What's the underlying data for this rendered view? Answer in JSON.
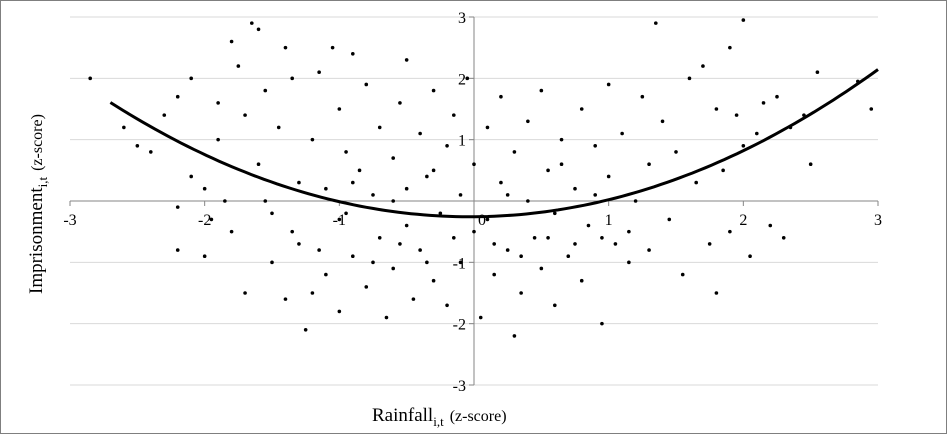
{
  "chart_data": {
    "type": "scatter",
    "title": "",
    "xlabel": "Rainfall",
    "xlabel_sub": "i,t",
    "xlabel_unit": "(z-score)",
    "ylabel": "Imprisonment",
    "ylabel_sub": "i,t",
    "ylabel_unit": "(z-score)",
    "xlim": [
      -3,
      3
    ],
    "ylim": [
      -3,
      3
    ],
    "x_ticks": [
      -3,
      -2,
      -1,
      0,
      1,
      2,
      3
    ],
    "y_ticks": [
      -3,
      -2,
      -1,
      1,
      2,
      3
    ],
    "x_tick_labels": [
      "-3",
      "-2",
      "-1",
      "0",
      "1",
      "2",
      "3"
    ],
    "y_tick_labels": [
      "-3",
      "-2",
      "-1",
      "1",
      "2",
      "3"
    ],
    "grid": "horizontal",
    "legend": "none",
    "colors": {
      "points": "#000000",
      "curve": "#000000",
      "grid": "#d9d9d9",
      "axis": "#868686"
    },
    "trendline": {
      "type": "quadratic",
      "x_range": [
        -2.7,
        3.0
      ],
      "points": [
        [
          -2.7,
          1.55
        ],
        [
          -2.0,
          0.8
        ],
        [
          -1.0,
          0.05
        ],
        [
          0.0,
          -0.25
        ],
        [
          1.0,
          -0.05
        ],
        [
          2.0,
          0.8
        ],
        [
          3.0,
          2.18
        ]
      ]
    },
    "series": [
      {
        "points": [
          [
            -2.85,
            2.0
          ],
          [
            -2.6,
            1.2
          ],
          [
            -2.5,
            0.9
          ],
          [
            -2.4,
            0.8
          ],
          [
            -2.3,
            1.4
          ],
          [
            -2.2,
            1.7
          ],
          [
            -2.2,
            -0.1
          ],
          [
            -2.2,
            -0.8
          ],
          [
            -2.1,
            2.0
          ],
          [
            -2.1,
            0.4
          ],
          [
            -2.0,
            0.2
          ],
          [
            -2.0,
            -0.9
          ],
          [
            -1.95,
            -0.3
          ],
          [
            -1.9,
            1.6
          ],
          [
            -1.9,
            1.0
          ],
          [
            -1.85,
            0.0
          ],
          [
            -1.8,
            -0.5
          ],
          [
            -1.8,
            2.6
          ],
          [
            -1.75,
            2.2
          ],
          [
            -1.7,
            1.4
          ],
          [
            -1.7,
            -1.5
          ],
          [
            -1.65,
            2.9
          ],
          [
            -1.6,
            2.8
          ],
          [
            -1.6,
            0.6
          ],
          [
            -1.55,
            1.8
          ],
          [
            -1.5,
            -0.2
          ],
          [
            -1.5,
            -1.0
          ],
          [
            -1.45,
            1.2
          ],
          [
            -1.4,
            -1.6
          ],
          [
            -1.4,
            2.5
          ],
          [
            -1.35,
            2.0
          ],
          [
            -1.3,
            0.3
          ],
          [
            -1.3,
            -0.7
          ],
          [
            -1.25,
            -2.1
          ],
          [
            -1.2,
            -1.5
          ],
          [
            -1.2,
            1.0
          ],
          [
            -1.15,
            2.1
          ],
          [
            -1.1,
            0.2
          ],
          [
            -1.1,
            -1.2
          ],
          [
            -1.05,
            2.5
          ],
          [
            -1.0,
            1.5
          ],
          [
            -1.0,
            -0.3
          ],
          [
            -1.0,
            -1.8
          ],
          [
            -0.95,
            0.8
          ],
          [
            -0.9,
            2.4
          ],
          [
            -0.9,
            -0.9
          ],
          [
            -0.85,
            0.5
          ],
          [
            -0.8,
            1.9
          ],
          [
            -0.8,
            -1.4
          ],
          [
            -0.75,
            0.1
          ],
          [
            -0.7,
            1.2
          ],
          [
            -0.7,
            -0.6
          ],
          [
            -0.65,
            -1.9
          ],
          [
            -0.6,
            0.7
          ],
          [
            -0.6,
            -1.1
          ],
          [
            -0.55,
            1.6
          ],
          [
            -0.5,
            2.3
          ],
          [
            -0.5,
            0.2
          ],
          [
            -0.5,
            -0.4
          ],
          [
            -0.45,
            -1.6
          ],
          [
            -0.4,
            1.1
          ],
          [
            -0.4,
            -0.8
          ],
          [
            -0.35,
            0.4
          ],
          [
            -0.3,
            1.8
          ],
          [
            -0.3,
            -1.3
          ],
          [
            -0.25,
            -0.2
          ],
          [
            -0.2,
            0.9
          ],
          [
            -0.2,
            -1.7
          ],
          [
            -0.15,
            1.4
          ],
          [
            -0.1,
            0.1
          ],
          [
            -0.1,
            -1.0
          ],
          [
            -0.05,
            2.0
          ],
          [
            0.0,
            0.6
          ],
          [
            0.0,
            -0.5
          ],
          [
            0.05,
            -1.9
          ],
          [
            0.1,
            1.2
          ],
          [
            0.1,
            -0.3
          ],
          [
            0.15,
            -1.2
          ],
          [
            0.2,
            0.3
          ],
          [
            0.2,
            1.7
          ],
          [
            0.25,
            -0.8
          ],
          [
            0.3,
            -2.2
          ],
          [
            0.3,
            0.8
          ],
          [
            0.35,
            -1.5
          ],
          [
            0.4,
            1.3
          ],
          [
            0.4,
            0.0
          ],
          [
            0.45,
            -0.6
          ],
          [
            0.5,
            -1.1
          ],
          [
            0.5,
            1.8
          ],
          [
            0.55,
            0.5
          ],
          [
            0.6,
            -0.2
          ],
          [
            0.6,
            -1.7
          ],
          [
            0.65,
            1.0
          ],
          [
            0.7,
            -0.9
          ],
          [
            0.75,
            0.2
          ],
          [
            0.8,
            1.5
          ],
          [
            0.8,
            -1.3
          ],
          [
            0.85,
            -0.4
          ],
          [
            0.9,
            0.9
          ],
          [
            0.95,
            -2.0
          ],
          [
            1.0,
            1.9
          ],
          [
            1.0,
            0.4
          ],
          [
            1.05,
            -0.7
          ],
          [
            1.1,
            1.1
          ],
          [
            1.15,
            -1.0
          ],
          [
            1.2,
            0.0
          ],
          [
            1.25,
            1.7
          ],
          [
            1.3,
            -0.8
          ],
          [
            1.3,
            0.6
          ],
          [
            1.35,
            2.9
          ],
          [
            1.4,
            1.3
          ],
          [
            1.45,
            -0.3
          ],
          [
            1.5,
            0.8
          ],
          [
            1.55,
            -1.2
          ],
          [
            1.6,
            2.0
          ],
          [
            1.65,
            0.3
          ],
          [
            1.7,
            2.2
          ],
          [
            1.75,
            -0.7
          ],
          [
            1.8,
            1.5
          ],
          [
            1.8,
            -1.5
          ],
          [
            1.85,
            0.5
          ],
          [
            1.9,
            2.5
          ],
          [
            1.9,
            -0.5
          ],
          [
            1.95,
            1.4
          ],
          [
            2.0,
            2.95
          ],
          [
            2.0,
            0.9
          ],
          [
            2.05,
            -0.9
          ],
          [
            2.1,
            1.1
          ],
          [
            2.15,
            1.6
          ],
          [
            2.2,
            -0.4
          ],
          [
            2.25,
            1.7
          ],
          [
            2.3,
            -0.6
          ],
          [
            2.35,
            1.2
          ],
          [
            2.45,
            1.4
          ],
          [
            2.5,
            0.6
          ],
          [
            2.55,
            2.1
          ],
          [
            2.85,
            1.95
          ],
          [
            2.95,
            1.5
          ],
          [
            -1.55,
            0.0
          ],
          [
            -1.35,
            -0.5
          ],
          [
            -1.15,
            -0.8
          ],
          [
            -0.95,
            -0.2
          ],
          [
            -0.75,
            -1.0
          ],
          [
            -0.55,
            -0.7
          ],
          [
            -0.35,
            -1.0
          ],
          [
            -0.15,
            -0.6
          ],
          [
            0.15,
            -0.7
          ],
          [
            0.35,
            -0.9
          ],
          [
            0.55,
            -0.6
          ],
          [
            0.75,
            -0.7
          ],
          [
            0.95,
            -0.6
          ],
          [
            1.15,
            -0.5
          ],
          [
            -0.9,
            0.3
          ],
          [
            -0.6,
            0.0
          ],
          [
            -0.3,
            0.5
          ],
          [
            0.25,
            0.1
          ],
          [
            0.65,
            0.6
          ],
          [
            0.9,
            0.1
          ]
        ]
      }
    ]
  }
}
